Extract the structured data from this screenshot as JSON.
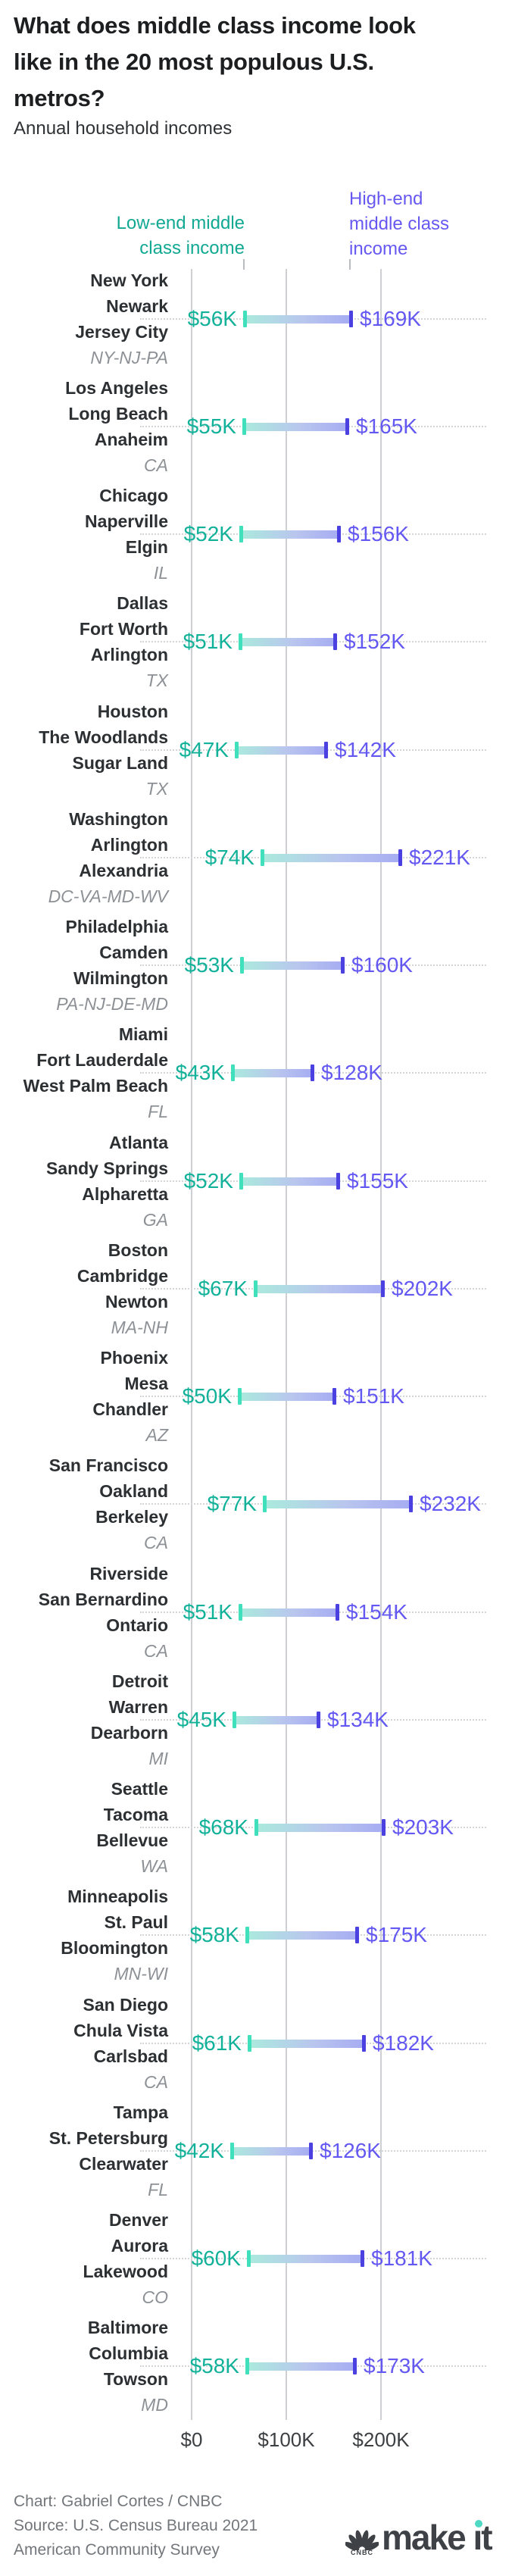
{
  "header": {
    "title": "What does middle class income look like in the 20 most populous U.S. metros?",
    "title_lines": [
      "What does middle class income look",
      "like in the 20 most populous U.S.",
      "metros?"
    ],
    "subtitle": "Annual household incomes"
  },
  "legend": {
    "low_lines": [
      "Low-end middle",
      "class income"
    ],
    "high_lines": [
      "High-end",
      "middle class",
      "income"
    ]
  },
  "colors": {
    "low_accent": "#12b199",
    "high_accent": "#6458f2",
    "low_cap": "#40e0bc",
    "high_cap": "#4a41e0",
    "bar_gradient_start": "#aaeadd",
    "bar_gradient_mid": "#b9c6ee",
    "bar_gradient_end": "#a6acf2",
    "gridline": "#cdcfd2",
    "makeit_dot": "#4fd9c4"
  },
  "chart_data": {
    "type": "range_bar",
    "title": "What does middle class income look like in the 20 most populous U.S. metros?",
    "subtitle": "Annual household incomes",
    "units": "USD thousands, annual household income",
    "series": [
      {
        "name": "Low-end middle class income"
      },
      {
        "name": "High-end middle class income"
      }
    ],
    "axis": {
      "ticks": [
        "$0",
        "$100K",
        "$200K"
      ],
      "tick_values": [
        0,
        100,
        200
      ],
      "xlim": [
        0,
        311
      ],
      "grid": "vertical"
    },
    "metros": [
      {
        "cities": [
          "New York",
          "Newark",
          "Jersey City"
        ],
        "state": "NY-NJ-PA",
        "low": 56,
        "high": 169,
        "low_label": "$56K",
        "high_label": "$169K"
      },
      {
        "cities": [
          "Los Angeles",
          "Long Beach",
          "Anaheim"
        ],
        "state": "CA",
        "low": 55,
        "high": 165,
        "low_label": "$55K",
        "high_label": "$165K"
      },
      {
        "cities": [
          "Chicago",
          "Naperville",
          "Elgin"
        ],
        "state": "IL",
        "low": 52,
        "high": 156,
        "low_label": "$52K",
        "high_label": "$156K"
      },
      {
        "cities": [
          "Dallas",
          "Fort Worth",
          "Arlington"
        ],
        "state": "TX",
        "low": 51,
        "high": 152,
        "low_label": "$51K",
        "high_label": "$152K"
      },
      {
        "cities": [
          "Houston",
          "The Woodlands",
          "Sugar Land"
        ],
        "state": "TX",
        "low": 47,
        "high": 142,
        "low_label": "$47K",
        "high_label": "$142K"
      },
      {
        "cities": [
          "Washington",
          "Arlington",
          "Alexandria"
        ],
        "state": "DC-VA-MD-WV",
        "low": 74,
        "high": 221,
        "low_label": "$74K",
        "high_label": "$221K"
      },
      {
        "cities": [
          "Philadelphia",
          "Camden",
          "Wilmington"
        ],
        "state": "PA-NJ-DE-MD",
        "low": 53,
        "high": 160,
        "low_label": "$53K",
        "high_label": "$160K"
      },
      {
        "cities": [
          "Miami",
          "Fort Lauderdale",
          "West Palm Beach"
        ],
        "state": "FL",
        "low": 43,
        "high": 128,
        "low_label": "$43K",
        "high_label": "$128K"
      },
      {
        "cities": [
          "Atlanta",
          "Sandy Springs",
          "Alpharetta"
        ],
        "state": "GA",
        "low": 52,
        "high": 155,
        "low_label": "$52K",
        "high_label": "$155K"
      },
      {
        "cities": [
          "Boston",
          "Cambridge",
          "Newton"
        ],
        "state": "MA-NH",
        "low": 67,
        "high": 202,
        "low_label": "$67K",
        "high_label": "$202K"
      },
      {
        "cities": [
          "Phoenix",
          "Mesa",
          "Chandler"
        ],
        "state": "AZ",
        "low": 50,
        "high": 151,
        "low_label": "$50K",
        "high_label": "$151K"
      },
      {
        "cities": [
          "San Francisco",
          "Oakland",
          "Berkeley"
        ],
        "state": "CA",
        "low": 77,
        "high": 232,
        "low_label": "$77K",
        "high_label": "$232K"
      },
      {
        "cities": [
          "Riverside",
          "San Bernardino",
          "Ontario"
        ],
        "state": "CA",
        "low": 51,
        "high": 154,
        "low_label": "$51K",
        "high_label": "$154K"
      },
      {
        "cities": [
          "Detroit",
          "Warren",
          "Dearborn"
        ],
        "state": "MI",
        "low": 45,
        "high": 134,
        "low_label": "$45K",
        "high_label": "$134K"
      },
      {
        "cities": [
          "Seattle",
          "Tacoma",
          "Bellevue"
        ],
        "state": "WA",
        "low": 68,
        "high": 203,
        "low_label": "$68K",
        "high_label": "$203K"
      },
      {
        "cities": [
          "Minneapolis",
          "St. Paul",
          "Bloomington"
        ],
        "state": "MN-WI",
        "low": 58,
        "high": 175,
        "low_label": "$58K",
        "high_label": "$175K"
      },
      {
        "cities": [
          "San Diego",
          "Chula Vista",
          "Carlsbad"
        ],
        "state": "CA",
        "low": 61,
        "high": 182,
        "low_label": "$61K",
        "high_label": "$182K"
      },
      {
        "cities": [
          "Tampa",
          "St. Petersburg",
          "Clearwater"
        ],
        "state": "FL",
        "low": 42,
        "high": 126,
        "low_label": "$42K",
        "high_label": "$126K"
      },
      {
        "cities": [
          "Denver",
          "Aurora",
          "Lakewood"
        ],
        "state": "CO",
        "low": 60,
        "high": 181,
        "low_label": "$60K",
        "high_label": "$181K"
      },
      {
        "cities": [
          "Baltimore",
          "Columbia",
          "Towson"
        ],
        "state": "MD",
        "low": 58,
        "high": 173,
        "low_label": "$58K",
        "high_label": "$173K"
      }
    ]
  },
  "footer": {
    "credit": "Chart: Gabriel Cortes / CNBC",
    "source_line1": "Source: U.S. Census Bureau 2021",
    "source_line2": "American Community Survey",
    "logo_network": "CNBC",
    "logo_wordmark_part1": "make ",
    "logo_wordmark_part2": "t"
  }
}
